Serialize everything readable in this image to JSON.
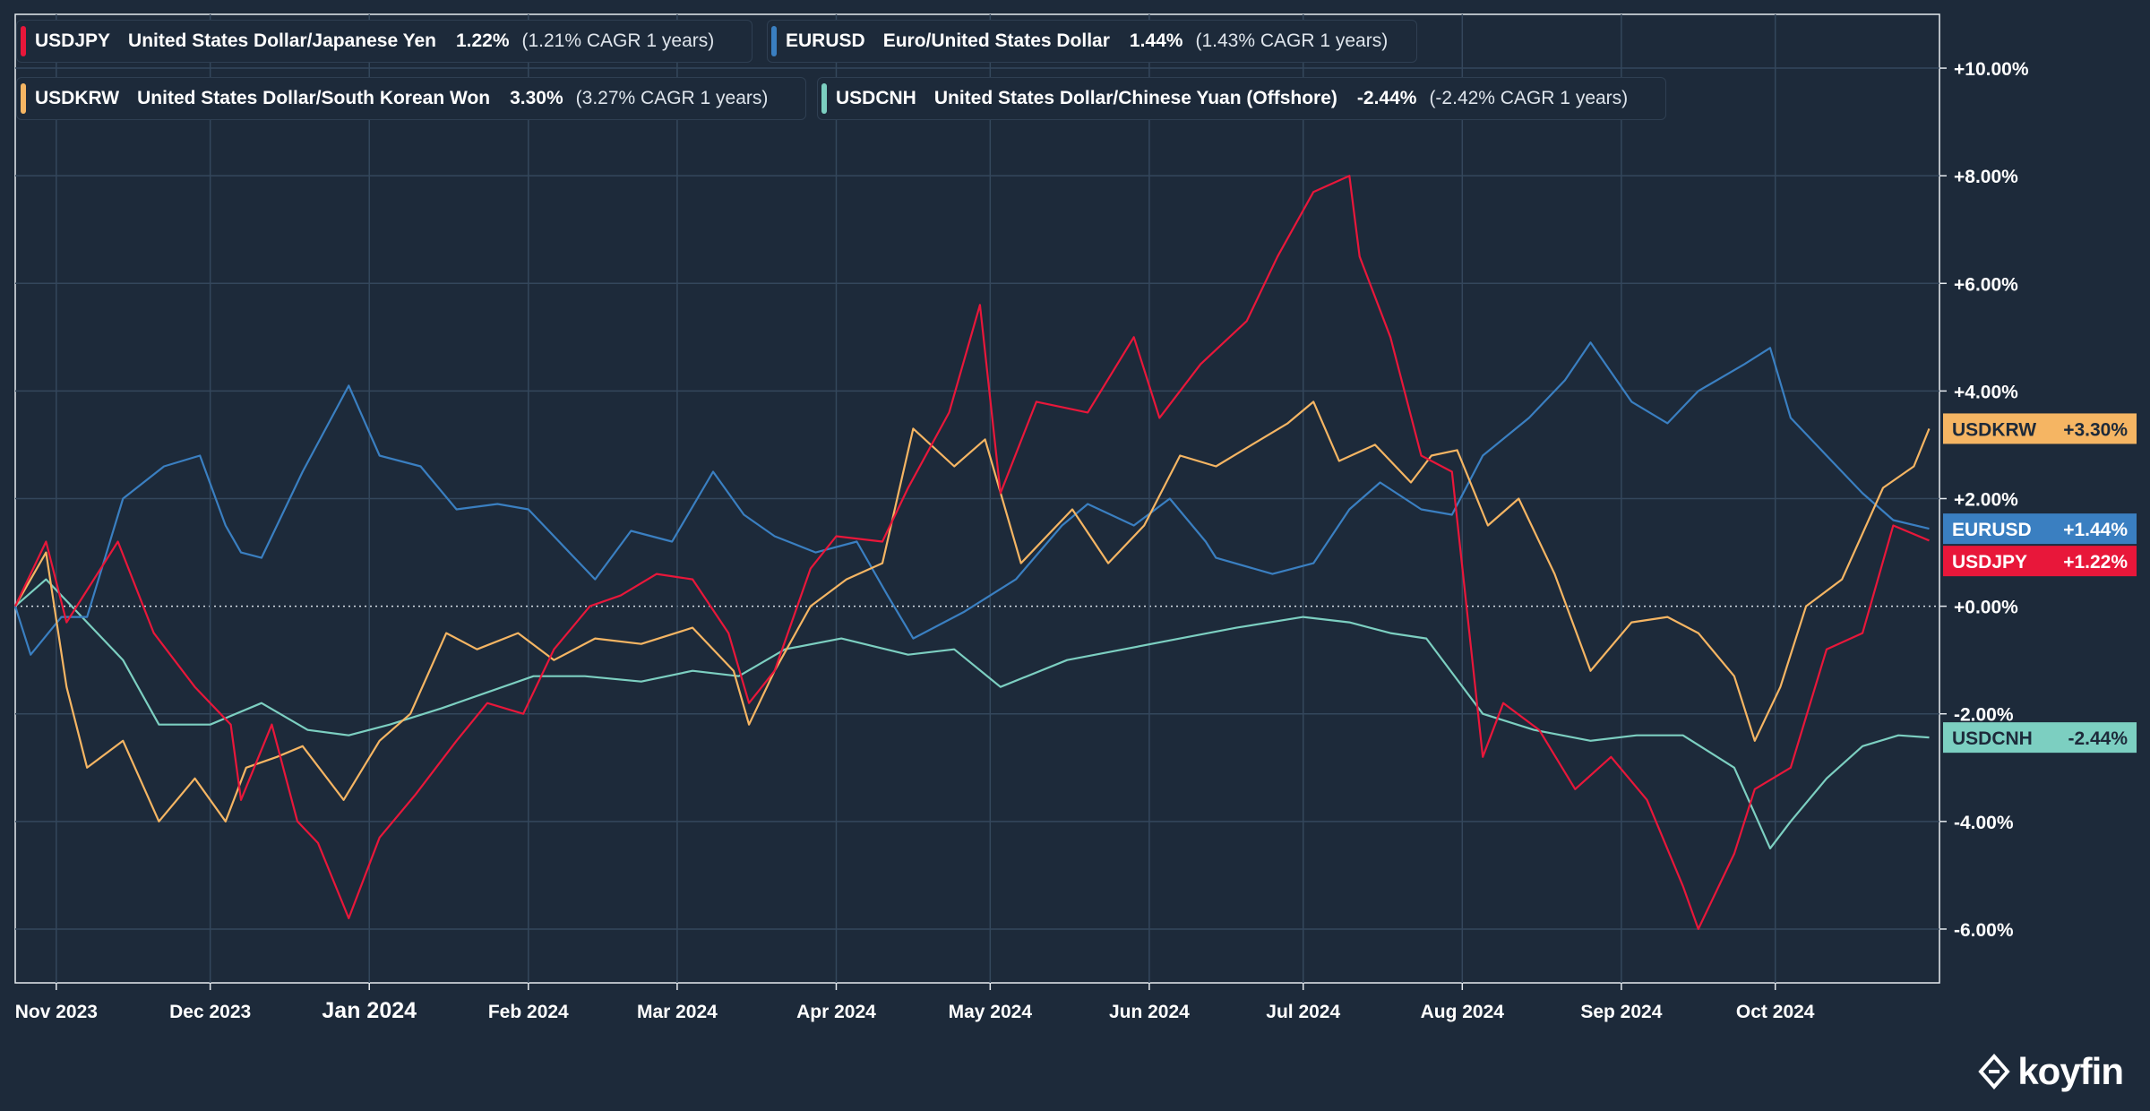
{
  "legend": [
    {
      "symbol": "USDJPY",
      "name": "United States Dollar/Japanese Yen",
      "pct": "1.22%",
      "cagr": "(1.21% CAGR 1 years)",
      "color": "#e8173a"
    },
    {
      "symbol": "EURUSD",
      "name": "Euro/United States Dollar",
      "pct": "1.44%",
      "cagr": "(1.43% CAGR 1 years)",
      "color": "#3a7fc1"
    },
    {
      "symbol": "USDKRW",
      "name": "United States Dollar/South Korean Won",
      "pct": "3.30%",
      "cagr": "(3.27% CAGR 1 years)",
      "color": "#f5b563"
    },
    {
      "symbol": "USDCNH",
      "name": "United States Dollar/Chinese Yuan (Offshore)",
      "pct": "-2.44%",
      "cagr": "(-2.42% CAGR 1 years)",
      "color": "#7ccfc1"
    }
  ],
  "logo_text": "koyfin",
  "chart_data": {
    "type": "line",
    "x_ticks": [
      "Nov 2023",
      "Dec 2023",
      "Jan 2024",
      "Feb 2024",
      "Mar 2024",
      "Apr 2024",
      "May 2024",
      "Jun 2024",
      "Jul 2024",
      "Aug 2024",
      "Sep 2024",
      "Oct 2024"
    ],
    "y_ticks": [
      "+10.00%",
      "+8.00%",
      "+6.00%",
      "+4.00%",
      "+2.00%",
      "+0.00%",
      "-2.00%",
      "-4.00%",
      "-6.00%"
    ],
    "y_tick_values": [
      10,
      8,
      6,
      4,
      2,
      0,
      -2,
      -4,
      -6
    ],
    "ylim": [
      -7,
      11
    ],
    "x_domain": [
      "2023-10-24",
      "2024-11-02"
    ],
    "grid": true,
    "legend_position": "top-left",
    "series": [
      {
        "name": "USDJPY",
        "color": "#e8173a",
        "end_label": "+1.22%",
        "points": [
          [
            "2023-10-24",
            0
          ],
          [
            "2023-10-30",
            1.2
          ],
          [
            "2023-11-03",
            -0.3
          ],
          [
            "2023-11-13",
            1.2
          ],
          [
            "2023-11-20",
            -0.5
          ],
          [
            "2023-11-28",
            -1.5
          ],
          [
            "2023-12-05",
            -2.2
          ],
          [
            "2023-12-07",
            -3.6
          ],
          [
            "2023-12-13",
            -2.2
          ],
          [
            "2023-12-18",
            -4.0
          ],
          [
            "2023-12-22",
            -4.4
          ],
          [
            "2023-12-28",
            -5.8
          ],
          [
            "2024-01-03",
            -4.3
          ],
          [
            "2024-01-10",
            -3.5
          ],
          [
            "2024-01-18",
            -2.5
          ],
          [
            "2024-01-24",
            -1.8
          ],
          [
            "2024-01-31",
            -2.0
          ],
          [
            "2024-02-06",
            -0.8
          ],
          [
            "2024-02-13",
            0.0
          ],
          [
            "2024-02-19",
            0.2
          ],
          [
            "2024-02-26",
            0.6
          ],
          [
            "2024-03-04",
            0.5
          ],
          [
            "2024-03-11",
            -0.5
          ],
          [
            "2024-03-15",
            -1.8
          ],
          [
            "2024-03-20",
            -1.2
          ],
          [
            "2024-03-27",
            0.7
          ],
          [
            "2024-04-01",
            1.3
          ],
          [
            "2024-04-10",
            1.2
          ],
          [
            "2024-04-15",
            2.2
          ],
          [
            "2024-04-23",
            3.6
          ],
          [
            "2024-04-29",
            5.6
          ],
          [
            "2024-05-03",
            2.1
          ],
          [
            "2024-05-10",
            3.8
          ],
          [
            "2024-05-20",
            3.6
          ],
          [
            "2024-05-29",
            5.0
          ],
          [
            "2024-06-03",
            3.5
          ],
          [
            "2024-06-11",
            4.5
          ],
          [
            "2024-06-20",
            5.3
          ],
          [
            "2024-06-26",
            6.5
          ],
          [
            "2024-07-03",
            7.7
          ],
          [
            "2024-07-10",
            8.0
          ],
          [
            "2024-07-12",
            6.5
          ],
          [
            "2024-07-18",
            5.0
          ],
          [
            "2024-07-24",
            2.8
          ],
          [
            "2024-07-30",
            2.5
          ],
          [
            "2024-08-05",
            -2.8
          ],
          [
            "2024-08-09",
            -1.8
          ],
          [
            "2024-08-16",
            -2.3
          ],
          [
            "2024-08-23",
            -3.4
          ],
          [
            "2024-08-30",
            -2.8
          ],
          [
            "2024-09-06",
            -3.6
          ],
          [
            "2024-09-13",
            -5.2
          ],
          [
            "2024-09-16",
            -6.0
          ],
          [
            "2024-09-23",
            -4.6
          ],
          [
            "2024-09-27",
            -3.4
          ],
          [
            "2024-10-04",
            -3.0
          ],
          [
            "2024-10-11",
            -0.8
          ],
          [
            "2024-10-18",
            -0.5
          ],
          [
            "2024-10-24",
            1.5
          ],
          [
            "2024-10-31",
            1.22
          ]
        ]
      },
      {
        "name": "EURUSD",
        "color": "#3a7fc1",
        "end_label": "+1.44%",
        "points": [
          [
            "2023-10-24",
            0
          ],
          [
            "2023-10-27",
            -0.9
          ],
          [
            "2023-11-02",
            -0.2
          ],
          [
            "2023-11-07",
            -0.2
          ],
          [
            "2023-11-14",
            2.0
          ],
          [
            "2023-11-22",
            2.6
          ],
          [
            "2023-11-29",
            2.8
          ],
          [
            "2023-12-04",
            1.5
          ],
          [
            "2023-12-07",
            1.0
          ],
          [
            "2023-12-11",
            0.9
          ],
          [
            "2023-12-19",
            2.5
          ],
          [
            "2023-12-28",
            4.1
          ],
          [
            "2024-01-03",
            2.8
          ],
          [
            "2024-01-11",
            2.6
          ],
          [
            "2024-01-18",
            1.8
          ],
          [
            "2024-01-26",
            1.9
          ],
          [
            "2024-02-01",
            1.8
          ],
          [
            "2024-02-09",
            1.0
          ],
          [
            "2024-02-14",
            0.5
          ],
          [
            "2024-02-21",
            1.4
          ],
          [
            "2024-02-29",
            1.2
          ],
          [
            "2024-03-08",
            2.5
          ],
          [
            "2024-03-14",
            1.7
          ],
          [
            "2024-03-20",
            1.3
          ],
          [
            "2024-03-28",
            1.0
          ],
          [
            "2024-04-05",
            1.2
          ],
          [
            "2024-04-11",
            0.2
          ],
          [
            "2024-04-16",
            -0.6
          ],
          [
            "2024-04-26",
            -0.1
          ],
          [
            "2024-05-06",
            0.5
          ],
          [
            "2024-05-15",
            1.5
          ],
          [
            "2024-05-20",
            1.9
          ],
          [
            "2024-05-29",
            1.5
          ],
          [
            "2024-06-05",
            2.0
          ],
          [
            "2024-06-12",
            1.2
          ],
          [
            "2024-06-14",
            0.9
          ],
          [
            "2024-06-25",
            0.6
          ],
          [
            "2024-07-03",
            0.8
          ],
          [
            "2024-07-10",
            1.8
          ],
          [
            "2024-07-16",
            2.3
          ],
          [
            "2024-07-24",
            1.8
          ],
          [
            "2024-07-30",
            1.7
          ],
          [
            "2024-08-05",
            2.8
          ],
          [
            "2024-08-14",
            3.5
          ],
          [
            "2024-08-21",
            4.2
          ],
          [
            "2024-08-26",
            4.9
          ],
          [
            "2024-09-03",
            3.8
          ],
          [
            "2024-09-10",
            3.4
          ],
          [
            "2024-09-16",
            4.0
          ],
          [
            "2024-09-25",
            4.5
          ],
          [
            "2024-09-30",
            4.8
          ],
          [
            "2024-10-04",
            3.5
          ],
          [
            "2024-10-11",
            2.8
          ],
          [
            "2024-10-18",
            2.1
          ],
          [
            "2024-10-24",
            1.6
          ],
          [
            "2024-10-31",
            1.44
          ]
        ]
      },
      {
        "name": "USDKRW",
        "color": "#f5b563",
        "end_label": "+3.30%",
        "points": [
          [
            "2023-10-24",
            0
          ],
          [
            "2023-10-30",
            1.0
          ],
          [
            "2023-11-03",
            -1.5
          ],
          [
            "2023-11-07",
            -3.0
          ],
          [
            "2023-11-14",
            -2.5
          ],
          [
            "2023-11-21",
            -4.0
          ],
          [
            "2023-11-28",
            -3.2
          ],
          [
            "2023-12-04",
            -4.0
          ],
          [
            "2023-12-08",
            -3.0
          ],
          [
            "2023-12-14",
            -2.8
          ],
          [
            "2023-12-19",
            -2.6
          ],
          [
            "2023-12-27",
            -3.6
          ],
          [
            "2024-01-03",
            -2.5
          ],
          [
            "2024-01-09",
            -2.0
          ],
          [
            "2024-01-16",
            -0.5
          ],
          [
            "2024-01-22",
            -0.8
          ],
          [
            "2024-01-30",
            -0.5
          ],
          [
            "2024-02-06",
            -1.0
          ],
          [
            "2024-02-14",
            -0.6
          ],
          [
            "2024-02-23",
            -0.7
          ],
          [
            "2024-03-04",
            -0.4
          ],
          [
            "2024-03-12",
            -1.2
          ],
          [
            "2024-03-15",
            -2.2
          ],
          [
            "2024-03-20",
            -1.2
          ],
          [
            "2024-03-27",
            0.0
          ],
          [
            "2024-04-03",
            0.5
          ],
          [
            "2024-04-10",
            0.8
          ],
          [
            "2024-04-16",
            3.3
          ],
          [
            "2024-04-24",
            2.6
          ],
          [
            "2024-04-30",
            3.1
          ],
          [
            "2024-05-07",
            0.8
          ],
          [
            "2024-05-17",
            1.8
          ],
          [
            "2024-05-24",
            0.8
          ],
          [
            "2024-05-31",
            1.5
          ],
          [
            "2024-06-07",
            2.8
          ],
          [
            "2024-06-14",
            2.6
          ],
          [
            "2024-06-21",
            3.0
          ],
          [
            "2024-06-28",
            3.4
          ],
          [
            "2024-07-03",
            3.8
          ],
          [
            "2024-07-08",
            2.7
          ],
          [
            "2024-07-15",
            3.0
          ],
          [
            "2024-07-22",
            2.3
          ],
          [
            "2024-07-26",
            2.8
          ],
          [
            "2024-07-31",
            2.9
          ],
          [
            "2024-08-06",
            1.5
          ],
          [
            "2024-08-12",
            2.0
          ],
          [
            "2024-08-19",
            0.6
          ],
          [
            "2024-08-26",
            -1.2
          ],
          [
            "2024-09-03",
            -0.3
          ],
          [
            "2024-09-10",
            -0.2
          ],
          [
            "2024-09-16",
            -0.5
          ],
          [
            "2024-09-23",
            -1.3
          ],
          [
            "2024-09-27",
            -2.5
          ],
          [
            "2024-10-02",
            -1.5
          ],
          [
            "2024-10-07",
            0.0
          ],
          [
            "2024-10-14",
            0.5
          ],
          [
            "2024-10-22",
            2.2
          ],
          [
            "2024-10-28",
            2.6
          ],
          [
            "2024-10-31",
            3.3
          ]
        ]
      },
      {
        "name": "USDCNH",
        "color": "#7ccfc1",
        "end_label": "-2.44%",
        "points": [
          [
            "2023-10-24",
            0
          ],
          [
            "2023-10-30",
            0.5
          ],
          [
            "2023-11-07",
            -0.3
          ],
          [
            "2023-11-14",
            -1.0
          ],
          [
            "2023-11-21",
            -2.2
          ],
          [
            "2023-12-01",
            -2.2
          ],
          [
            "2023-12-11",
            -1.8
          ],
          [
            "2023-12-20",
            -2.3
          ],
          [
            "2023-12-28",
            -2.4
          ],
          [
            "2024-01-05",
            -2.2
          ],
          [
            "2024-01-15",
            -1.9
          ],
          [
            "2024-01-24",
            -1.6
          ],
          [
            "2024-02-02",
            -1.3
          ],
          [
            "2024-02-12",
            -1.3
          ],
          [
            "2024-02-23",
            -1.4
          ],
          [
            "2024-03-04",
            -1.2
          ],
          [
            "2024-03-13",
            -1.3
          ],
          [
            "2024-03-22",
            -0.8
          ],
          [
            "2024-04-02",
            -0.6
          ],
          [
            "2024-04-15",
            -0.9
          ],
          [
            "2024-04-24",
            -0.8
          ],
          [
            "2024-05-03",
            -1.5
          ],
          [
            "2024-05-16",
            -1.0
          ],
          [
            "2024-05-27",
            -0.8
          ],
          [
            "2024-06-07",
            -0.6
          ],
          [
            "2024-06-18",
            -0.4
          ],
          [
            "2024-07-01",
            -0.2
          ],
          [
            "2024-07-10",
            -0.3
          ],
          [
            "2024-07-18",
            -0.5
          ],
          [
            "2024-07-25",
            -0.6
          ],
          [
            "2024-08-05",
            -2.0
          ],
          [
            "2024-08-15",
            -2.3
          ],
          [
            "2024-08-26",
            -2.5
          ],
          [
            "2024-09-04",
            -2.4
          ],
          [
            "2024-09-13",
            -2.4
          ],
          [
            "2024-09-23",
            -3.0
          ],
          [
            "2024-09-30",
            -4.5
          ],
          [
            "2024-10-04",
            -4.0
          ],
          [
            "2024-10-11",
            -3.2
          ],
          [
            "2024-10-18",
            -2.6
          ],
          [
            "2024-10-25",
            -2.4
          ],
          [
            "2024-10-31",
            -2.44
          ]
        ]
      }
    ]
  }
}
